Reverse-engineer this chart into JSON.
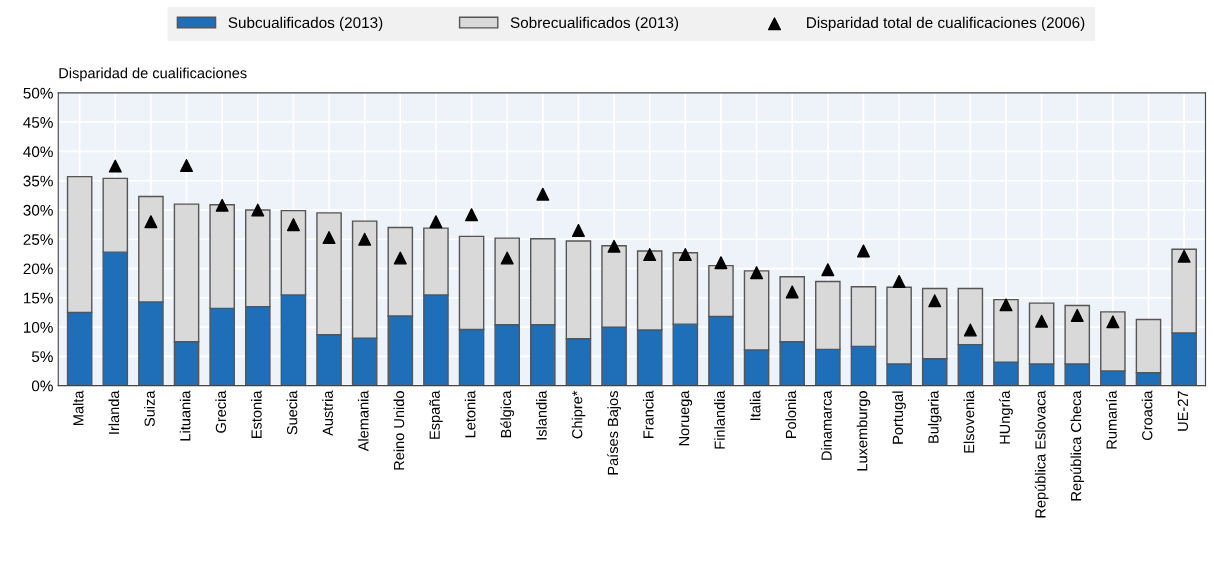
{
  "chart_data": {
    "type": "bar",
    "stacked": true,
    "ylabel": "Disparidad de cualificaciones",
    "categories": [
      "Malta",
      "Irlanda",
      "Suiza",
      "Lituania",
      "Grecia",
      "Estonia",
      "Suecia",
      "Austria",
      "Alemania",
      "Reino Unido",
      "España",
      "Letonia",
      "Bélgica",
      "Islandia",
      "Chipre*",
      "Países Bajos",
      "Francia",
      "Noruega",
      "Finlandia",
      "Italia",
      "Polonia",
      "Dinamarca",
      "Luxemburgo",
      "Portugal",
      "Bulgaria",
      "Elsovenia",
      "HUngría",
      "República Eslovaca",
      "República Checa",
      "Rumanía",
      "Croacia",
      "UE-27"
    ],
    "series": [
      {
        "name": "Subcualificados (2013)",
        "color": "#1f6fb8",
        "values": [
          12.5,
          22.8,
          14.3,
          7.5,
          13.2,
          13.5,
          15.5,
          8.7,
          8.1,
          11.9,
          15.5,
          9.6,
          10.4,
          10.4,
          8.0,
          10.0,
          9.5,
          10.5,
          11.8,
          6.1,
          7.5,
          6.2,
          6.7,
          3.7,
          4.6,
          7.0,
          4.0,
          3.7,
          3.7,
          2.5,
          2.2,
          9.0
        ]
      },
      {
        "name": "Sobrecualificados (2013)",
        "color": "#d9d9d9",
        "values": [
          23.2,
          12.6,
          18.0,
          23.5,
          17.7,
          16.5,
          14.4,
          20.8,
          20.0,
          15.1,
          11.4,
          15.9,
          14.8,
          14.7,
          16.7,
          13.9,
          13.5,
          12.2,
          8.7,
          13.5,
          11.1,
          11.6,
          10.2,
          13.1,
          12.0,
          9.6,
          10.7,
          10.4,
          10.0,
          10.1,
          9.1,
          14.3
        ]
      },
      {
        "name": "Disparidad total de cualificaciones (2006)",
        "type": "scatter",
        "color": "#000000",
        "marker": "triangle",
        "values": [
          null,
          37.5,
          28.0,
          37.6,
          30.8,
          30.0,
          27.5,
          25.3,
          25.0,
          21.8,
          28.0,
          29.2,
          21.8,
          32.7,
          26.5,
          23.8,
          22.4,
          22.4,
          21.0,
          19.3,
          16.0,
          19.8,
          23.0,
          17.8,
          14.5,
          9.5,
          13.8,
          11.0,
          12.0,
          10.9,
          null,
          22.1
        ]
      }
    ],
    "ylim": [
      0,
      50
    ],
    "yticks": [
      {
        "value": 0,
        "label": "0%"
      },
      {
        "value": 5,
        "label": "5%"
      },
      {
        "value": 10,
        "label": "10%"
      },
      {
        "value": 15,
        "label": "15%"
      },
      {
        "value": 20,
        "label": "20%"
      },
      {
        "value": 25,
        "label": "25%"
      },
      {
        "value": 30,
        "label": "30%"
      },
      {
        "value": 35,
        "label": "35%"
      },
      {
        "value": 40,
        "label": "40%"
      },
      {
        "value": 45,
        "label": "45%"
      },
      {
        "value": 50,
        "label": "50%"
      }
    ],
    "grid": true,
    "legend": "top"
  }
}
